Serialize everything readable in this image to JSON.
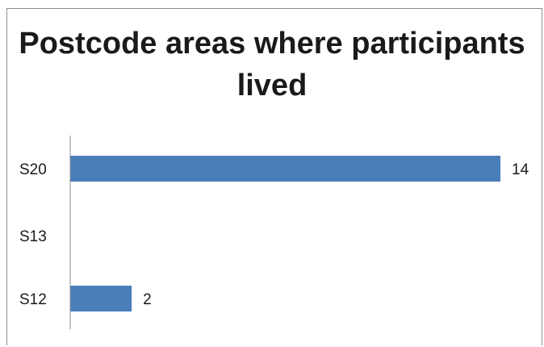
{
  "chart_data": {
    "type": "bar",
    "orientation": "horizontal",
    "title": "Postcode areas where participants lived",
    "categories": [
      "S20",
      "S13",
      "S12"
    ],
    "values": [
      14,
      0,
      2
    ],
    "data_labels": [
      "14",
      "",
      "2"
    ],
    "bar_color": "#4a7ebb",
    "xlim": [
      0,
      14
    ],
    "grid": false,
    "legend": "none"
  }
}
